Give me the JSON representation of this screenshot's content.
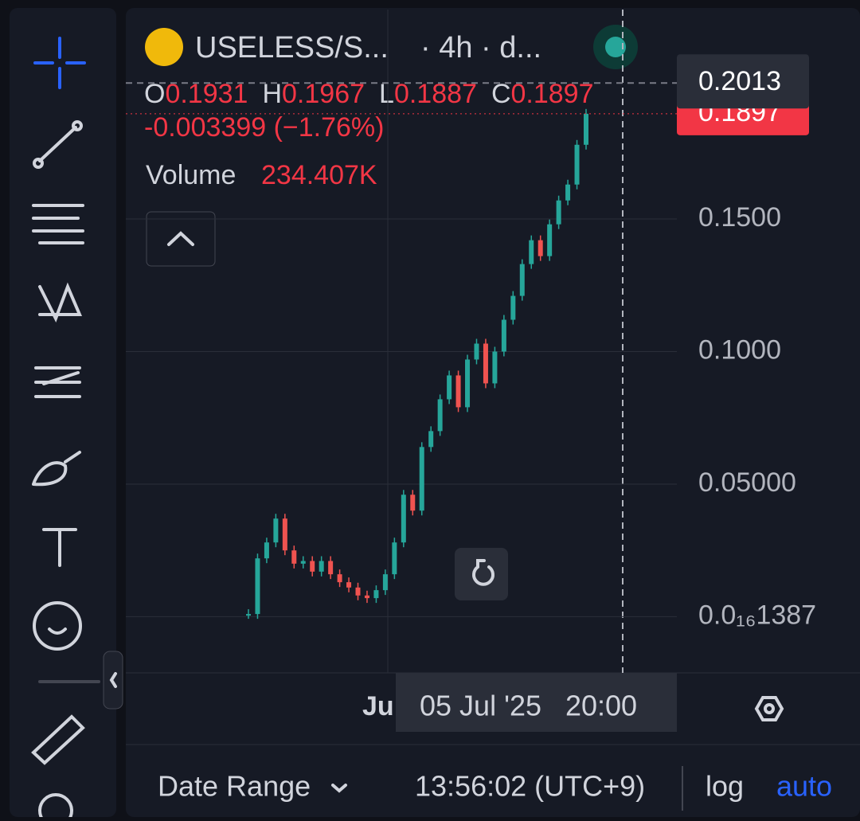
{
  "header": {
    "symbol": "USELESS/S...",
    "interval": "· 4h · d..."
  },
  "ohlc": {
    "o_label": "O",
    "o": "0.1931",
    "h_label": "H",
    "h": "0.1967",
    "l_label": "L",
    "l": "0.1887",
    "c_label": "C",
    "c": "0.1897",
    "change": "-0.003399 (−1.76%)"
  },
  "volume": {
    "label": "Volume",
    "value": "234.407K"
  },
  "chart_data": {
    "type": "candlestick",
    "closes": [
      0.001,
      0.022,
      0.028,
      0.037,
      0.025,
      0.02,
      0.021,
      0.017,
      0.021,
      0.016,
      0.013,
      0.011,
      0.008,
      0.007,
      0.01,
      0.016,
      0.028,
      0.046,
      0.04,
      0.064,
      0.07,
      0.082,
      0.091,
      0.079,
      0.097,
      0.103,
      0.088,
      0.1,
      0.112,
      0.121,
      0.133,
      0.142,
      0.136,
      0.148,
      0.157,
      0.163,
      0.178,
      0.1897
    ],
    "up_color": "#26a69a",
    "down_color": "#ef5350",
    "ylim": [
      -0.0212,
      0.229
    ],
    "yticks": [
      {
        "value": 0.15,
        "label": "0.1500"
      },
      {
        "value": 0.1,
        "label": "0.1000"
      },
      {
        "value": 0.05,
        "label": "0.05000"
      },
      {
        "value": 1.387e-17,
        "label": "0.0₁₆1387"
      }
    ],
    "crosshair_price": 0.2013,
    "last_price": 0.1897,
    "x_label": "Ju",
    "crosshair_time": "05 Jul '25   20:00"
  },
  "footer": {
    "date_range": "Date Range",
    "clock": "13:56:02 (UTC+9)",
    "log": "log",
    "auto": "auto"
  }
}
